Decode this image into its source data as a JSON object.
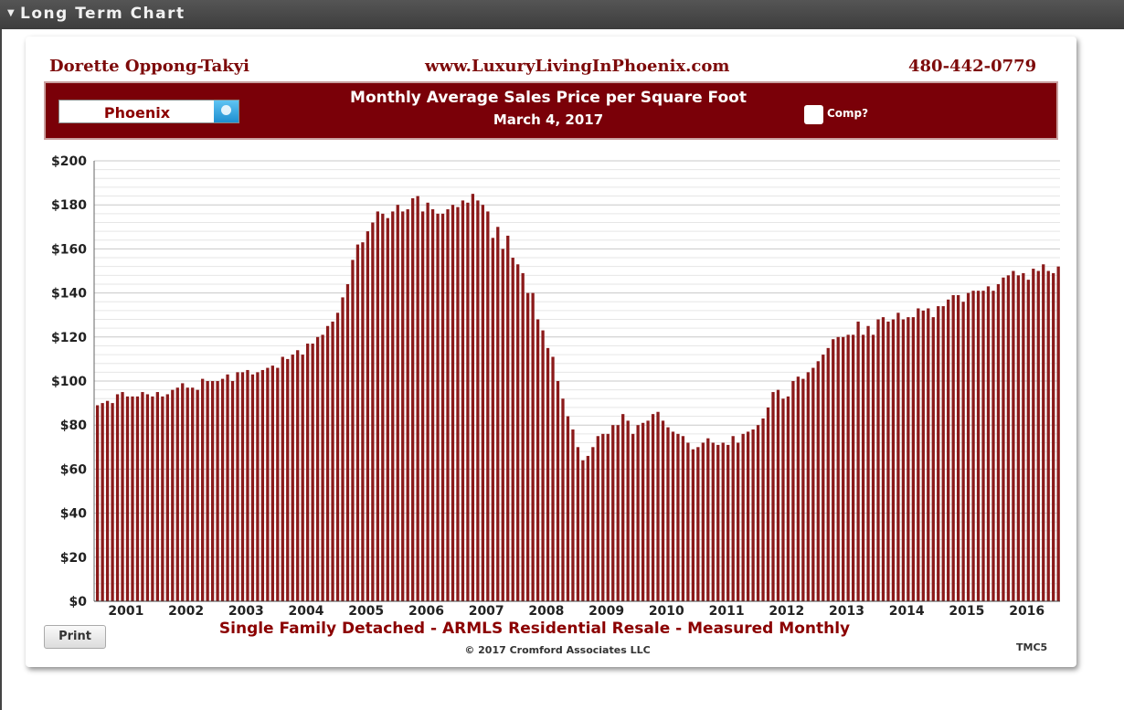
{
  "panel": {
    "title": "Long Term Chart"
  },
  "header": {
    "agent": "Dorette Oppong-Takyi",
    "website": "www.LuxuryLivingInPhoenix.com",
    "phone": "480-442-0779"
  },
  "banner": {
    "city": "Phoenix",
    "chart_title": "Monthly Average Sales Price per Square Foot",
    "date": "March 4, 2017",
    "comp_label": "Comp?"
  },
  "footer": {
    "subtitle": "Single Family Detached - ARMLS Residential Resale - Measured Monthly",
    "copyright": "© 2017 Cromford Associates LLC",
    "code": "TMC5",
    "print_label": "Print"
  },
  "colors": {
    "bar": "#8b1a1a",
    "banner": "#7a0008",
    "accent_text": "#8b0000"
  },
  "chart_data": {
    "type": "bar",
    "title": "Monthly Average Sales Price per Square Foot",
    "xlabel": "",
    "ylabel": "",
    "ylim": [
      0,
      200
    ],
    "yticks": [
      0,
      20,
      40,
      60,
      80,
      100,
      120,
      140,
      160,
      180,
      200
    ],
    "ytick_labels": [
      "$0",
      "$20",
      "$40",
      "$60",
      "$80",
      "$100",
      "$120",
      "$140",
      "$160",
      "$180",
      "$200"
    ],
    "x_labels": [
      "2001",
      "2002",
      "2003",
      "2004",
      "2005",
      "2006",
      "2007",
      "2008",
      "2009",
      "2010",
      "2011",
      "2012",
      "2013",
      "2014",
      "2015",
      "2016"
    ],
    "start": "2001-01",
    "frequency": "monthly",
    "grid": true,
    "values": [
      89,
      90,
      91,
      90,
      94,
      95,
      93,
      93,
      93,
      95,
      94,
      93,
      95,
      93,
      94,
      96,
      97,
      99,
      97,
      97,
      96,
      101,
      100,
      100,
      100,
      101,
      103,
      100,
      104,
      104,
      105,
      103,
      104,
      105,
      106,
      107,
      106,
      111,
      110,
      112,
      114,
      112,
      117,
      117,
      120,
      121,
      125,
      127,
      131,
      138,
      144,
      155,
      162,
      163,
      168,
      172,
      177,
      176,
      174,
      177,
      180,
      177,
      178,
      183,
      184,
      177,
      181,
      178,
      176,
      176,
      178,
      180,
      179,
      182,
      181,
      185,
      182,
      180,
      177,
      165,
      170,
      160,
      166,
      156,
      153,
      149,
      140,
      140,
      128,
      123,
      115,
      111,
      100,
      92,
      84,
      78,
      70,
      64,
      66,
      70,
      75,
      76,
      76,
      80,
      80,
      85,
      82,
      76,
      80,
      81,
      82,
      85,
      86,
      82,
      79,
      77,
      76,
      75,
      72,
      69,
      70,
      72,
      74,
      72,
      71,
      72,
      71,
      75,
      72,
      76,
      77,
      78,
      80,
      83,
      88,
      95,
      96,
      92,
      93,
      100,
      102,
      101,
      104,
      106,
      109,
      112,
      115,
      119,
      120,
      120,
      121,
      121,
      127,
      121,
      125,
      121,
      128,
      129,
      127,
      128,
      131,
      128,
      129,
      129,
      133,
      132,
      133,
      129,
      134,
      134,
      137,
      139,
      139,
      136,
      140,
      141,
      141,
      141,
      143,
      141,
      144,
      147,
      148,
      150,
      148,
      149,
      146,
      151,
      150,
      153,
      150,
      149,
      152
    ]
  }
}
